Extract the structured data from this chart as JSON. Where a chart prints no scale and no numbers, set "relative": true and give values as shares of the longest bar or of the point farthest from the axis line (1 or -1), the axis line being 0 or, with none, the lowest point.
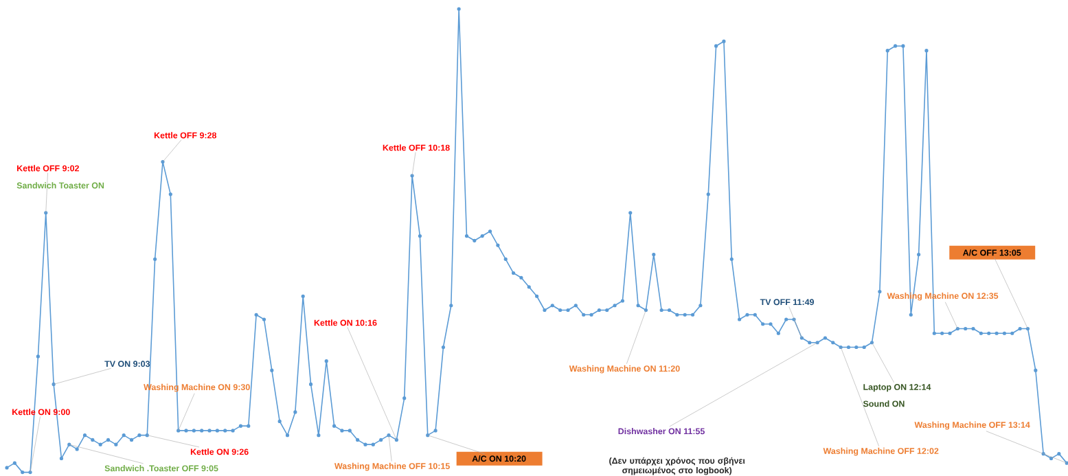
{
  "chart_data": {
    "type": "line",
    "relative": true,
    "color": "#5b9bd5",
    "marker": "circle",
    "categories": [
      null,
      null,
      null,
      null,
      null,
      null,
      null,
      null,
      null,
      null,
      null,
      null,
      null,
      null,
      null,
      null,
      null,
      null,
      null,
      null,
      null,
      null,
      null,
      null,
      null,
      null,
      null,
      null,
      null,
      null,
      null,
      null,
      null,
      null,
      null,
      null,
      null,
      null,
      null,
      null,
      null,
      null,
      null,
      null,
      null,
      null,
      null,
      null,
      null,
      null,
      null,
      null,
      null,
      null,
      null,
      null,
      null,
      null,
      null,
      null,
      null,
      null,
      null,
      null,
      null,
      null,
      null,
      null,
      null,
      null,
      null,
      null,
      null,
      null,
      null,
      null,
      null,
      null,
      null,
      null,
      null,
      null,
      null,
      null,
      null,
      null,
      null,
      null,
      null,
      null,
      null,
      null,
      null,
      null,
      null,
      null,
      null,
      null,
      null,
      null,
      null,
      null,
      null,
      null,
      null,
      null,
      null,
      null,
      null,
      null,
      null,
      null,
      null,
      null,
      null,
      null,
      null,
      null,
      null,
      null,
      null,
      null,
      null,
      null,
      null,
      null,
      null,
      null,
      null,
      null,
      null,
      null,
      null,
      null,
      null,
      null,
      null
    ],
    "values": [
      0.01,
      0.02,
      0.0,
      0.0,
      0.25,
      0.56,
      0.19,
      0.03,
      0.06,
      0.05,
      0.08,
      0.07,
      0.06,
      0.07,
      0.06,
      0.08,
      0.07,
      0.08,
      0.08,
      0.46,
      0.67,
      0.6,
      0.09,
      0.09,
      0.09,
      0.09,
      0.09,
      0.09,
      0.09,
      0.09,
      0.1,
      0.1,
      0.34,
      0.33,
      0.22,
      0.11,
      0.08,
      0.13,
      0.38,
      0.19,
      0.08,
      0.24,
      0.1,
      0.09,
      0.09,
      0.07,
      0.06,
      0.06,
      0.07,
      0.08,
      0.07,
      0.16,
      0.64,
      0.51,
      0.08,
      0.09,
      0.27,
      0.36,
      1.0,
      0.51,
      0.5,
      0.51,
      0.52,
      0.49,
      0.46,
      0.43,
      0.42,
      0.4,
      0.38,
      0.35,
      0.36,
      0.35,
      0.35,
      0.36,
      0.34,
      0.34,
      0.35,
      0.35,
      0.36,
      0.37,
      0.56,
      0.36,
      0.35,
      0.47,
      0.35,
      0.35,
      0.34,
      0.34,
      0.34,
      0.36,
      0.6,
      0.92,
      0.93,
      0.46,
      0.33,
      0.34,
      0.34,
      0.32,
      0.32,
      0.3,
      0.33,
      0.33,
      0.29,
      0.28,
      0.28,
      0.29,
      0.28,
      0.27,
      0.27,
      0.27,
      0.27,
      0.28,
      0.39,
      0.91,
      0.92,
      0.92,
      0.34,
      0.47,
      0.91,
      0.3,
      0.3,
      0.3,
      0.31,
      0.31,
      0.31,
      0.3,
      0.3,
      0.3,
      0.3,
      0.3,
      0.31,
      0.31,
      0.22,
      0.04,
      0.03,
      0.04,
      0.02
    ],
    "annotations": [
      "Kettle ON 9:00",
      "Kettle OFF 9:02",
      "Sandwich Toaster ON",
      "TV ON 9:03",
      "Sandwich .Toaster OFF 9:05",
      "Kettle OFF 9:28",
      "Washing Machine ON 9:30",
      "Kettle ON 9:26",
      "Kettle OFF 10:18",
      "Kettle ON 10:16",
      "A/C ON 10:20",
      "Washing Machine OFF 10:15",
      "Washing Machine ON 11:20",
      "TV OFF 11:49",
      "Dishwasher ON 11:55",
      "(Δεν υπάρχει χρόνος που σβήνει σημειωμένος στο logbook)",
      "Washing Machine OFF 12:02",
      "Laptop ON 12:14",
      "Sound ON",
      "Washing Machine ON 12:35",
      "A/C OFF 13:05",
      "Washing Machine OFF 13:14"
    ]
  }
}
